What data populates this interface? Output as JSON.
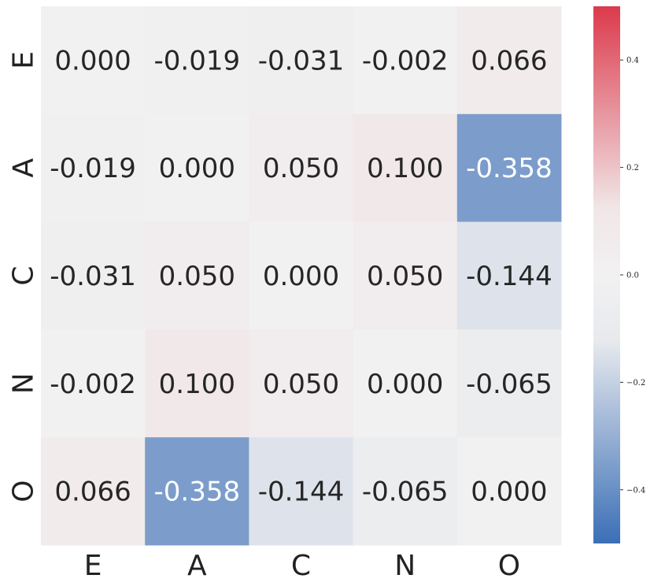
{
  "chart_data": {
    "type": "heatmap",
    "title": "",
    "xlabel": "",
    "ylabel": "",
    "x_categories": [
      "E",
      "A",
      "C",
      "N",
      "O"
    ],
    "y_categories": [
      "E",
      "A",
      "C",
      "N",
      "O"
    ],
    "values": [
      [
        0.0,
        -0.019,
        -0.031,
        -0.002,
        0.066
      ],
      [
        -0.019,
        0.0,
        0.05,
        0.1,
        -0.358
      ],
      [
        -0.031,
        0.05,
        0.0,
        0.05,
        -0.144
      ],
      [
        -0.002,
        0.1,
        0.05,
        0.0,
        -0.065
      ],
      [
        0.066,
        -0.358,
        -0.144,
        -0.065,
        0.0
      ]
    ],
    "cell_labels": [
      [
        "0.000",
        "-0.019",
        "-0.031",
        "-0.002",
        "0.066"
      ],
      [
        "-0.019",
        "0.000",
        "0.050",
        "0.100",
        "-0.358"
      ],
      [
        "-0.031",
        "0.050",
        "0.000",
        "0.050",
        "-0.144"
      ],
      [
        "-0.002",
        "0.100",
        "0.050",
        "0.000",
        "-0.065"
      ],
      [
        "0.066",
        "-0.358",
        "-0.144",
        "-0.065",
        "0.000"
      ]
    ],
    "colorbar": {
      "range": [
        -0.5,
        0.5
      ],
      "ticks": [
        -0.4,
        -0.2,
        0.0,
        0.2,
        0.4
      ],
      "tick_labels": [
        "−0.4",
        "−0.2",
        "0.0",
        "0.2",
        "0.4"
      ],
      "colormap": "diverging blue-white-red",
      "neutral_band": [
        -0.1,
        0.1
      ]
    },
    "colors": {
      "negative_end": "#3b6fb6",
      "neutral": "#f2f1f1",
      "positive_end": "#dc3a4c"
    }
  }
}
